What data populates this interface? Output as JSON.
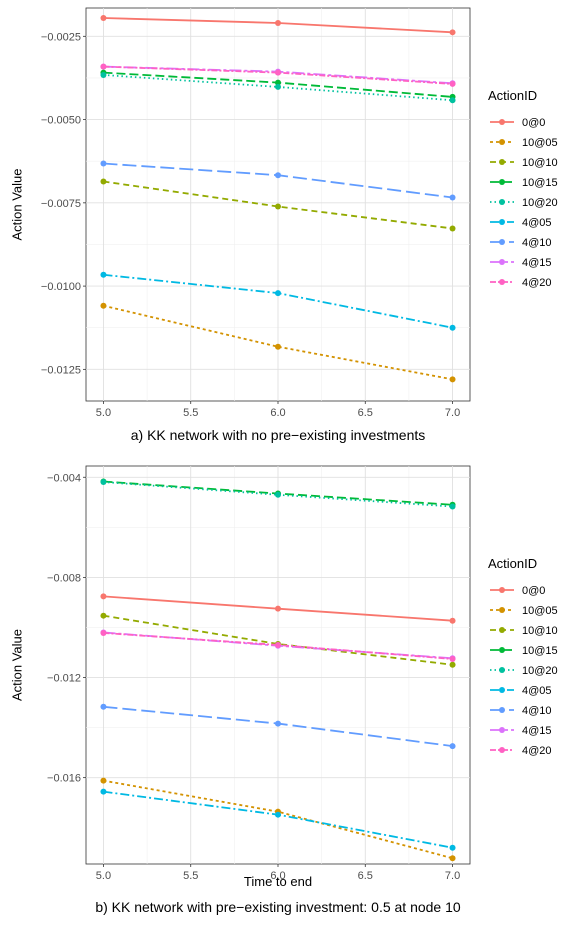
{
  "chart_data": [
    {
      "type": "line",
      "caption": "a) KK network with no pre−existing investments",
      "xlabel": "",
      "ylabel": "Action Value",
      "xlim": [
        4.9,
        7.1
      ],
      "ylim": [
        -0.01345,
        -0.00165
      ],
      "x_ticks": [
        "5.0",
        "5.5",
        "6.0",
        "6.5",
        "7.0"
      ],
      "x_tick_values": [
        5.0,
        5.5,
        6.0,
        6.5,
        7.0
      ],
      "y_ticks": [
        "−0.0025",
        "−0.0050",
        "−0.0075",
        "−0.0100",
        "−0.0125"
      ],
      "y_tick_values": [
        -0.0025,
        -0.005,
        -0.0075,
        -0.01,
        -0.0125
      ],
      "grid": true,
      "legend_title": "ActionID",
      "legend_position": "right",
      "x": [
        5.0,
        6.0,
        7.0
      ],
      "series": [
        {
          "name": "0@0",
          "values": [
            -0.00195,
            -0.0021,
            -0.00238
          ]
        },
        {
          "name": "10@05",
          "values": [
            -0.01059,
            -0.01182,
            -0.0128
          ]
        },
        {
          "name": "10@10",
          "values": [
            -0.00686,
            -0.00761,
            -0.00827
          ]
        },
        {
          "name": "10@15",
          "values": [
            -0.00359,
            -0.00389,
            -0.00432
          ]
        },
        {
          "name": "10@20",
          "values": [
            -0.00366,
            -0.00402,
            -0.00442
          ]
        },
        {
          "name": "4@05",
          "values": [
            -0.00966,
            -0.01021,
            -0.01125
          ]
        },
        {
          "name": "4@10",
          "values": [
            -0.00632,
            -0.00667,
            -0.00734
          ]
        },
        {
          "name": "4@15",
          "values": [
            -0.00341,
            -0.00356,
            -0.00391
          ]
        },
        {
          "name": "4@20",
          "values": [
            -0.00341,
            -0.00359,
            -0.00393
          ]
        }
      ]
    },
    {
      "type": "line",
      "caption": "b) KK network with pre−existing investment: 0.5 at node 10",
      "xlabel": "Time to end",
      "ylabel": "Action Value",
      "xlim": [
        4.9,
        7.1
      ],
      "ylim": [
        -0.01945,
        -0.00355
      ],
      "x_ticks": [
        "5.0",
        "5.5",
        "6.0",
        "6.5",
        "7.0"
      ],
      "x_tick_values": [
        5.0,
        5.5,
        6.0,
        6.5,
        7.0
      ],
      "y_ticks": [
        "−0.004",
        "−0.008",
        "−0.012",
        "−0.016"
      ],
      "y_tick_values": [
        -0.004,
        -0.008,
        -0.012,
        -0.016
      ],
      "grid": true,
      "legend_title": "ActionID",
      "legend_position": "right",
      "x": [
        5.0,
        6.0,
        7.0
      ],
      "series": [
        {
          "name": "0@0",
          "values": [
            -0.00876,
            -0.00925,
            -0.00973
          ]
        },
        {
          "name": "10@05",
          "values": [
            -0.01612,
            -0.01736,
            -0.01922
          ]
        },
        {
          "name": "10@10",
          "values": [
            -0.00953,
            -0.01066,
            -0.01149
          ]
        },
        {
          "name": "10@15",
          "values": [
            -0.00417,
            -0.00465,
            -0.0051
          ]
        },
        {
          "name": "10@20",
          "values": [
            -0.00419,
            -0.0047,
            -0.00517
          ]
        },
        {
          "name": "4@05",
          "values": [
            -0.01656,
            -0.01748,
            -0.0188
          ]
        },
        {
          "name": "4@10",
          "values": [
            -0.01317,
            -0.01384,
            -0.01474
          ]
        },
        {
          "name": "4@15",
          "values": [
            -0.0102,
            -0.01073,
            -0.01123
          ]
        },
        {
          "name": "4@20",
          "values": [
            -0.01022,
            -0.0107,
            -0.01126
          ]
        }
      ]
    }
  ],
  "series_styles": [
    {
      "color": "#F8766D",
      "dash": ""
    },
    {
      "color": "#D39200",
      "dash": "3,3"
    },
    {
      "color": "#93AA00",
      "dash": "6,4"
    },
    {
      "color": "#00BA38",
      "dash": "9,4"
    },
    {
      "color": "#00C19F",
      "dash": "1.5,3"
    },
    {
      "color": "#00B9E3",
      "dash": "9,3,2,3"
    },
    {
      "color": "#619CFF",
      "dash": "14,5"
    },
    {
      "color": "#DB72FB",
      "dash": "12,3,3,3"
    },
    {
      "color": "#FF61C3",
      "dash": "6,2,2,2"
    }
  ]
}
